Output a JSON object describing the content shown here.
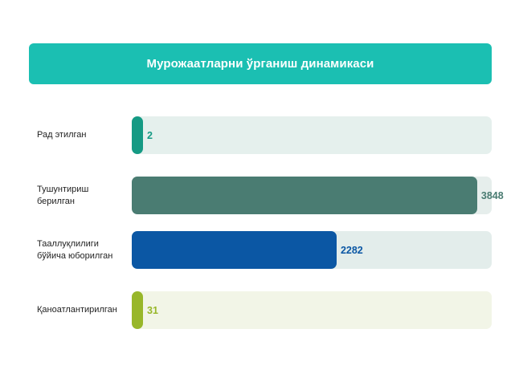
{
  "header": {
    "title": "Мурожаатларни ўрганиш динамикаси",
    "bg_color": "#1bbfb2"
  },
  "chart_data": {
    "type": "bar",
    "orientation": "horizontal",
    "title": "Мурожаатларни ўрганиш динамикаси",
    "categories": [
      "Рад этилган",
      "Тушунтириш берилган",
      "Тааллуқлилиги бўйича юборилган",
      "Қаноатлантирилган"
    ],
    "category_lines": [
      [
        "Рад этилган"
      ],
      [
        "Тушунтириш",
        "берилган"
      ],
      [
        "Тааллуқлилиги",
        "бўйича юборилган"
      ],
      [
        "Қаноатлантирилган"
      ]
    ],
    "values": [
      2,
      3848,
      2282,
      31
    ],
    "value_labels": [
      "2",
      "3848",
      "2282",
      "31"
    ],
    "xlim": [
      0,
      4010
    ],
    "min_fill_fraction": 0.03,
    "grid": false,
    "legend": "none",
    "bar_colors": [
      "#159a84",
      "#4a7c72",
      "#0b57a4",
      "#98b72a"
    ],
    "track_colors": [
      "#e5f0ed",
      "#e6eeec",
      "#e3edeb",
      "#f2f5e7"
    ],
    "label_colors": [
      "#159a84",
      "#4a7c72",
      "#0b57a4",
      "#98b72a"
    ]
  }
}
